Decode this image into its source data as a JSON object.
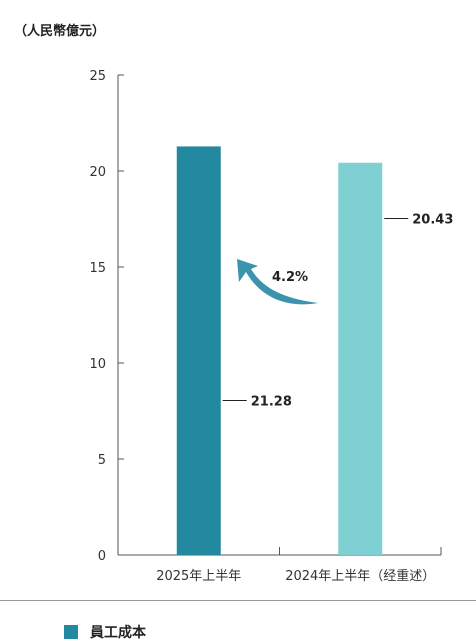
{
  "unit_label": "（人民幣億元）",
  "legend_label": "員工成本",
  "change_label": "4.2%",
  "colors": {
    "bar_current": "#2389a0",
    "bar_previous": "#7fd0d3",
    "arrow": "#3b93ad",
    "axis": "#555555"
  },
  "chart_data": {
    "type": "bar",
    "categories": [
      "2025年上半年",
      "2024年上半年（经重述）"
    ],
    "values": [
      21.28,
      20.43
    ],
    "value_labels": [
      "21.28",
      "20.43"
    ],
    "ylim": [
      0,
      25
    ],
    "yticks": [
      0,
      5,
      10,
      15,
      20,
      25
    ],
    "grid": false,
    "legend_position": "bottom-left"
  }
}
